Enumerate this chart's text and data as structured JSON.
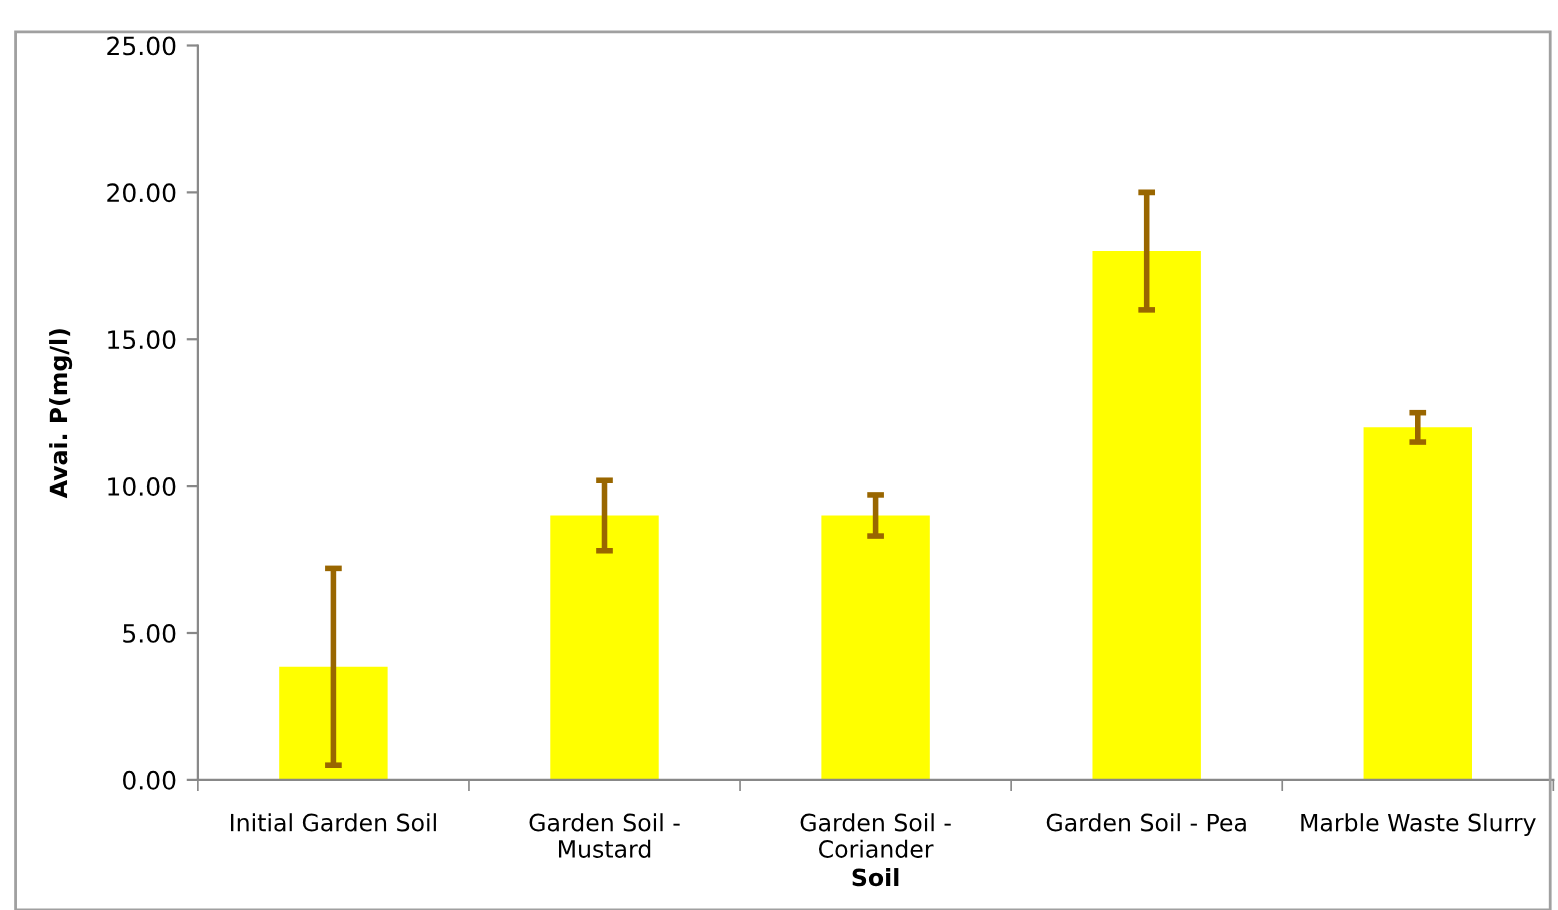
{
  "chart_data": {
    "type": "bar",
    "xlabel": "Soil",
    "ylabel": "Avai. P(mg/l)",
    "categories": [
      "Initial Garden Soil",
      "Garden Soil -\nMustard",
      "Garden Soil -\nCoriander",
      "Garden Soil - Pea",
      "Marble Waste Slurry"
    ],
    "values": [
      3.85,
      9.0,
      9.0,
      18.0,
      12.0
    ],
    "errors": [
      3.35,
      1.2,
      0.7,
      2.0,
      0.5
    ],
    "color": "#ffff00",
    "ylim": [
      0,
      25
    ],
    "yticks": [
      {
        "value": 0,
        "label": "0.00"
      },
      {
        "value": 5,
        "label": "5.00"
      },
      {
        "value": 10,
        "label": "10.00"
      },
      {
        "value": 15,
        "label": "15.00"
      },
      {
        "value": 20,
        "label": "20.00"
      },
      {
        "value": 25,
        "label": "25.00"
      }
    ],
    "grid": false,
    "legend": false
  }
}
